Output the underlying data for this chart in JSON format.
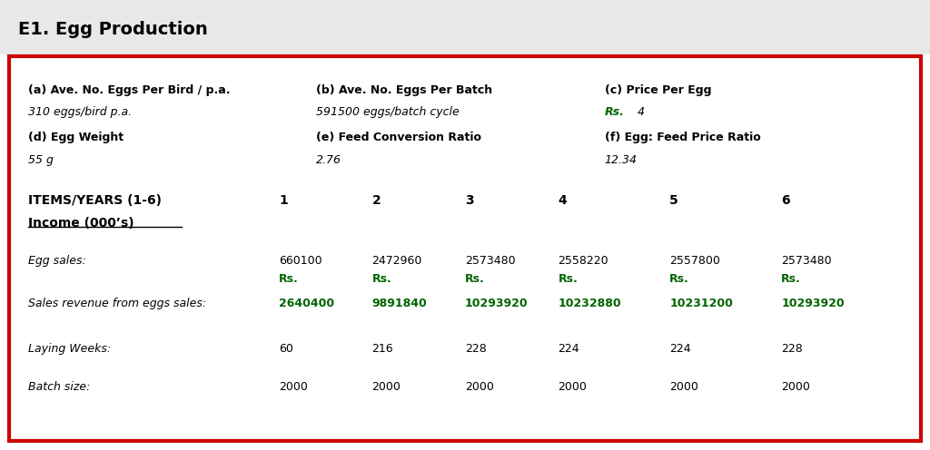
{
  "title": "E1. Egg Production",
  "title_bg": "#e8e8e8",
  "border_color": "#cc0000",
  "bg_color": "#ffffff",
  "text_color": "#000000",
  "green_color": "#006400",
  "params": [
    {
      "label": "(a) Ave. No. Eggs Per Bird / p.a.",
      "value": "310 eggs/bird p.a.",
      "col": 0
    },
    {
      "label": "(b) Ave. No. Eggs Per Batch",
      "value": "591500 eggs/batch cycle",
      "col": 1
    },
    {
      "label": "(c) Price Per Egg",
      "value_prefix": "Rs.",
      "value": " 4",
      "col": 2
    },
    {
      "label": "(d) Egg Weight",
      "value": "55 g",
      "col": 0
    },
    {
      "label": "(e) Feed Conversion Ratio",
      "value": "2.76",
      "col": 1
    },
    {
      "label": "(f) Egg: Feed Price Ratio",
      "value": "12.34",
      "col": 2
    }
  ],
  "header_row": [
    "ITEMS/YEARS (1-6)",
    "1",
    "2",
    "3",
    "4",
    "5",
    "6"
  ],
  "income_label": "Income (000’s)",
  "rows": [
    {
      "label": "Egg sales:",
      "values": [
        "660100",
        "2472960",
        "2573480",
        "2558220",
        "2557800",
        "2573480"
      ],
      "green": false,
      "has_prefix": false
    },
    {
      "label": "Sales revenue from eggs sales:",
      "prefix": "Rs.",
      "values": [
        "2640400",
        "9891840",
        "10293920",
        "10232880",
        "10231200",
        "10293920"
      ],
      "green": true,
      "has_prefix": true
    },
    {
      "label": "Laying Weeks:",
      "values": [
        "60",
        "216",
        "228",
        "224",
        "224",
        "228"
      ],
      "green": false,
      "has_prefix": false
    },
    {
      "label": "Batch size:",
      "values": [
        "2000",
        "2000",
        "2000",
        "2000",
        "2000",
        "2000"
      ],
      "green": false,
      "has_prefix": false
    }
  ]
}
